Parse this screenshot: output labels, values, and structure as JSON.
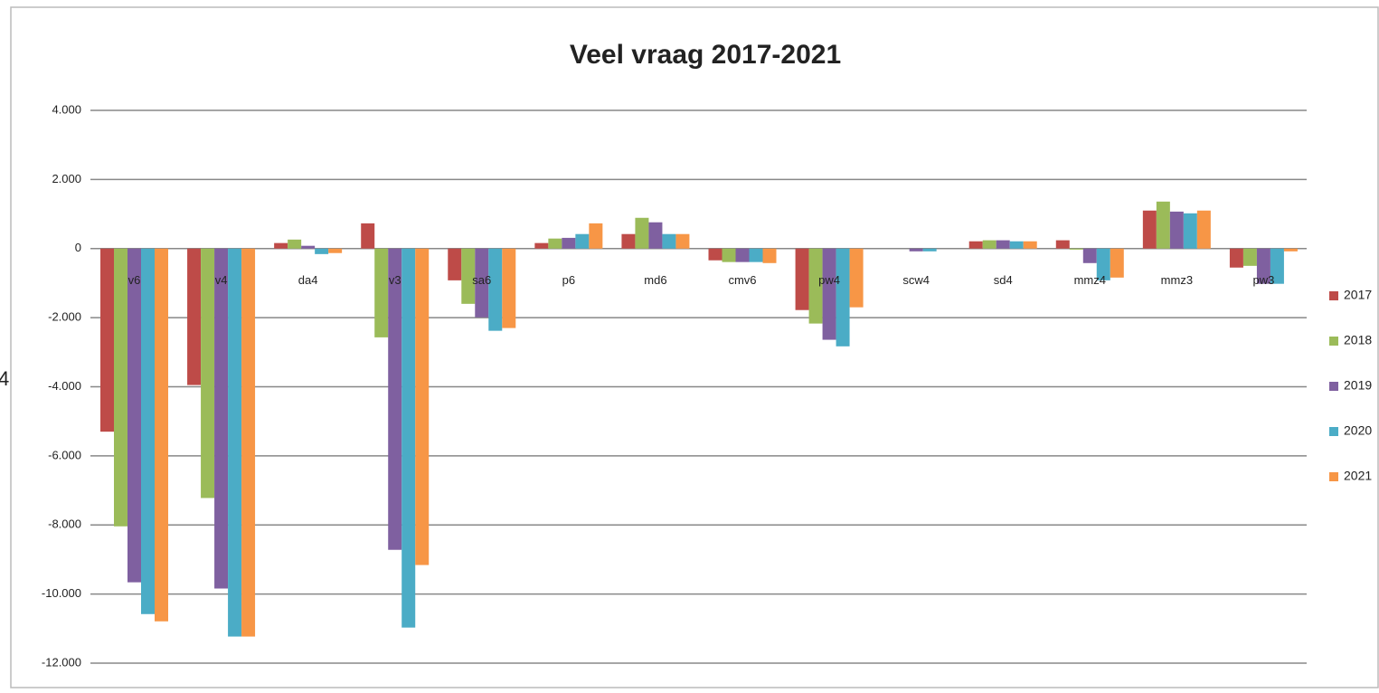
{
  "chart_data": {
    "type": "bar",
    "title": "Veel vraag 2017-2021",
    "categories": [
      "v6",
      "v4",
      "da4",
      "v3",
      "sa6",
      "p6",
      "md6",
      "cmv6",
      "pw4",
      "scw4",
      "sd4",
      "mmz4",
      "mmz3",
      "pw3"
    ],
    "series": [
      {
        "name": "2017",
        "color": "#be4b48",
        "values": [
          -5300,
          -3950,
          160,
          730,
          -920,
          160,
          420,
          -340,
          -1780,
          0,
          210,
          240,
          1100,
          -550
        ]
      },
      {
        "name": "2018",
        "color": "#9bbb59",
        "values": [
          -8040,
          -7220,
          260,
          -2570,
          -1600,
          290,
          890,
          -390,
          -2170,
          0,
          240,
          -30,
          1360,
          -500
        ]
      },
      {
        "name": "2019",
        "color": "#7f60a0",
        "values": [
          -9660,
          -9840,
          80,
          -8720,
          -1990,
          310,
          760,
          -390,
          -2640,
          -80,
          240,
          -420,
          1070,
          -1020
        ]
      },
      {
        "name": "2020",
        "color": "#4bacc6",
        "values": [
          -10580,
          -11230,
          -160,
          -10970,
          -2380,
          420,
          420,
          -390,
          -2830,
          -80,
          210,
          -920,
          1020,
          -1020
        ]
      },
      {
        "name": "2021",
        "color": "#f79646",
        "values": [
          -10790,
          -11230,
          -130,
          -9160,
          -2300,
          730,
          420,
          -420,
          -1700,
          0,
          210,
          -840,
          1100,
          -80
        ]
      }
    ],
    "ylim": [
      -12000,
      4000
    ],
    "yticks": [
      {
        "value": 4000,
        "label": "4.000"
      },
      {
        "value": 2000,
        "label": "2.000"
      },
      0,
      {
        "value": -2000,
        "label": "-2.000"
      },
      {
        "value": -4000,
        "label": "-4.000"
      },
      {
        "value": -6000,
        "label": "-6.000"
      },
      {
        "value": -8000,
        "label": "-8.000"
      },
      {
        "value": -10000,
        "label": "-10.000"
      },
      {
        "value": -12000,
        "label": "-12.000"
      }
    ],
    "grid": true,
    "legend": "right",
    "annotations": [
      "4"
    ]
  }
}
